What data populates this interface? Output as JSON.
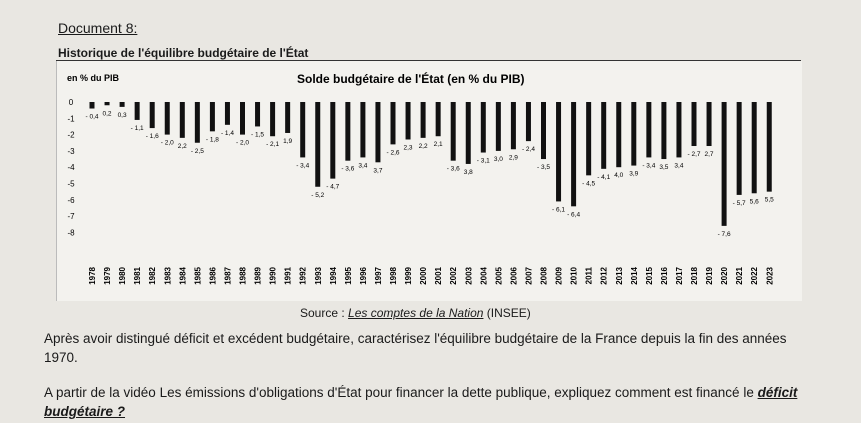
{
  "document": {
    "title": "Document 8:",
    "subtitle": "Historique de l'équilibre budgétaire de l'État",
    "source_prefix": "Source : ",
    "source_title": "Les comptes de la Nation",
    "source_suffix": " (INSEE)",
    "paragraph1": "Après avoir distingué déficit et excédent budgétaire, caractérisez l'équilibre budgétaire de la France depuis la fin des années 1970.",
    "paragraph2_prefix": "A partir de la vidéo Les émissions d'obligations d'État pour financer la dette publique, expliquez comment est financé le ",
    "paragraph2_emphasis": "déficit budgétaire ?"
  },
  "chart_data": {
    "type": "bar",
    "title": "Solde budgétaire de l'État (en % du PIB)",
    "ylabel": "en % du PIB",
    "ylim": [
      -8,
      0
    ],
    "yticks": [
      0,
      -1,
      -2,
      -3,
      -4,
      -5,
      -6,
      -7,
      -8
    ],
    "categories": [
      "1978",
      "1979",
      "1980",
      "1981",
      "1982",
      "1983",
      "1984",
      "1985",
      "1986",
      "1987",
      "1988",
      "1989",
      "1990",
      "1991",
      "1992",
      "1993",
      "1994",
      "1995",
      "1996",
      "1997",
      "1998",
      "1999",
      "2000",
      "2001",
      "2002",
      "2003",
      "2004",
      "2005",
      "2006",
      "2007",
      "2008",
      "2009",
      "2010",
      "2011",
      "2012",
      "2013",
      "2014",
      "2015",
      "2016",
      "2017",
      "2018",
      "2019",
      "2020",
      "2021",
      "2022",
      "2023"
    ],
    "values": [
      -0.4,
      -0.2,
      -0.3,
      -1.1,
      -1.6,
      -2.0,
      -2.2,
      -2.5,
      -1.8,
      -1.4,
      -2.0,
      -1.5,
      -2.1,
      -1.9,
      -3.4,
      -5.2,
      -4.7,
      -3.6,
      -3.4,
      -3.7,
      -2.6,
      -2.3,
      -2.2,
      -2.1,
      -3.6,
      -3.8,
      -3.1,
      -3.0,
      -2.9,
      -2.4,
      -3.5,
      -6.1,
      -6.4,
      -4.5,
      -4.1,
      -4.0,
      -3.9,
      -3.4,
      -3.5,
      -3.4,
      -2.7,
      -2.7,
      -7.6,
      -5.7,
      -5.6,
      -5.5
    ],
    "data_labels": [
      "- 0,4",
      "0,2",
      "0,3",
      "- 1,1",
      "- 1,6",
      "- 2,0",
      "2,2",
      "- 2,5",
      "- 1,8",
      "- 1,4",
      "- 2,0",
      "- 1,5",
      "- 2,1",
      "1,9",
      "- 3,4",
      "- 5,2",
      "- 4,7",
      "- 3,6",
      "3,4",
      "3,7",
      "- 2,6",
      "2,3",
      "2,2",
      "2,1",
      "- 3,6",
      "3,8",
      "- 3,1",
      "3,0",
      "2,9",
      "- 2,4",
      "- 3,5",
      "- 6,1",
      "- 6,4",
      "- 4,5",
      "- 4,1",
      "4,0",
      "3,9",
      "- 3,4",
      "3,5",
      "3,4",
      "- 2,7",
      "2,7",
      "- 7,6",
      "- 5,7",
      "5,6",
      "5,5"
    ],
    "grid": false,
    "bar_color": "#111111"
  }
}
